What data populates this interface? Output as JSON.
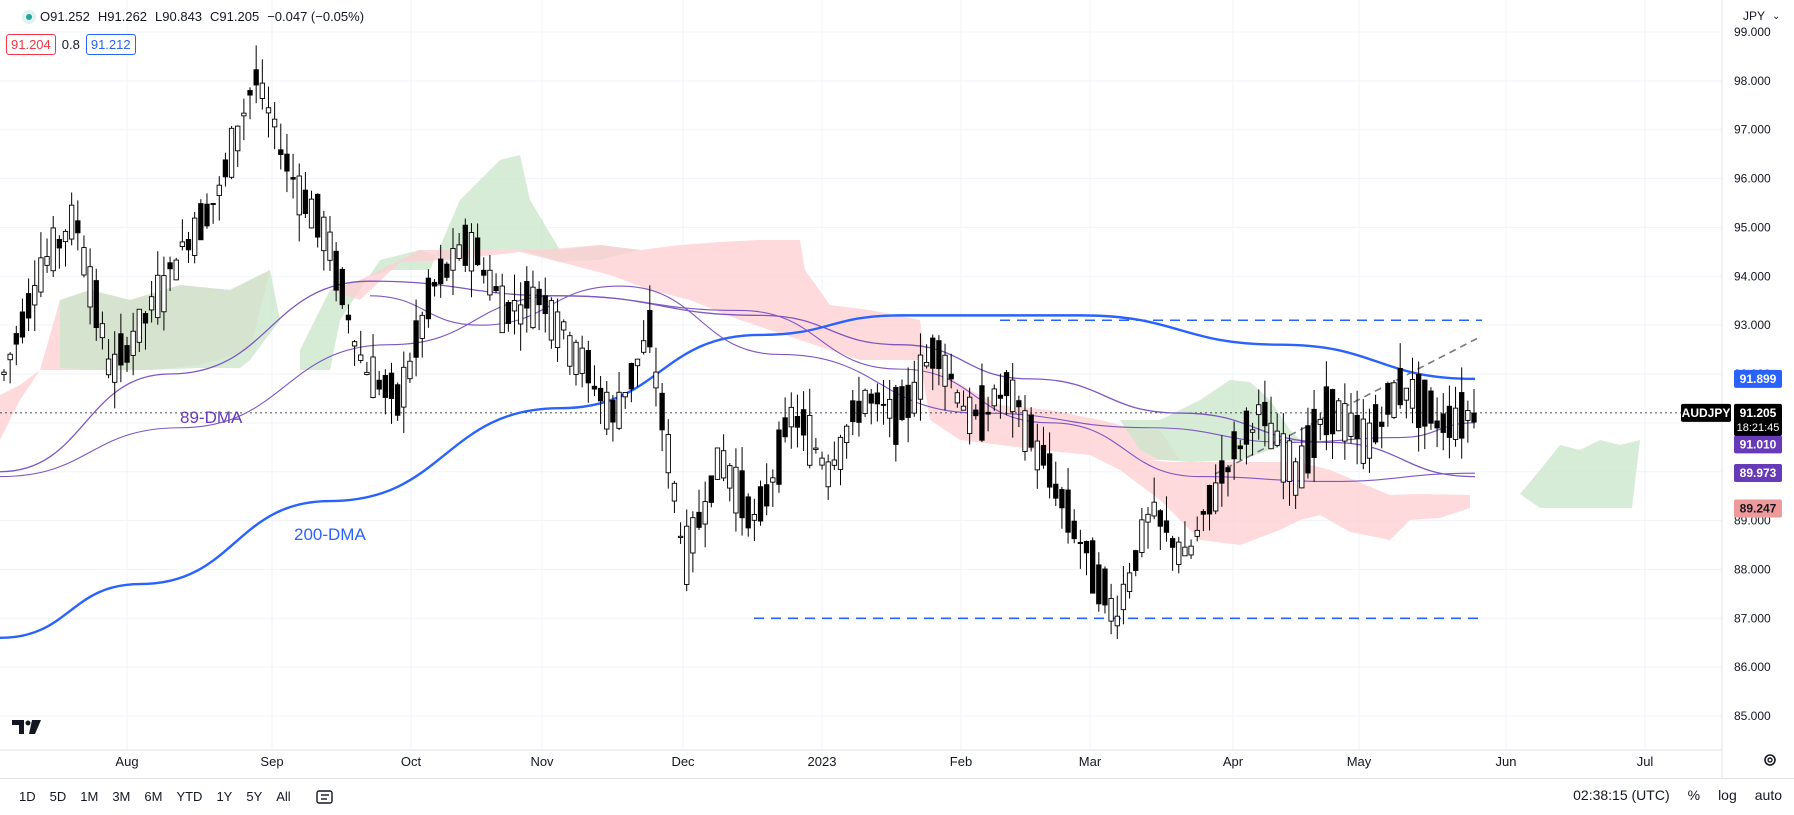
{
  "header": {
    "ohlc": [
      "O91.252",
      "H91.262",
      "L90.843",
      "C91.205",
      "−0.047 (−0.05%)"
    ],
    "bid": "91.204",
    "spread": "0.8",
    "ask": "91.212"
  },
  "annotations": {
    "dma89": "89-DMA",
    "dma200": "200-DMA"
  },
  "axis": {
    "currency": "JPY",
    "price_ticks": [
      "99.000",
      "98.000",
      "97.000",
      "96.000",
      "95.000",
      "94.000",
      "93.000",
      "92.000",
      "91.000",
      "90.000",
      "89.000",
      "88.000",
      "87.000",
      "86.000",
      "85.000"
    ],
    "time_ticks": [
      "Aug",
      "Sep",
      "Oct",
      "Nov",
      "Dec",
      "2023",
      "Feb",
      "Mar",
      "Apr",
      "May",
      "Jun",
      "Jul"
    ]
  },
  "price_labels": {
    "symbol": "AUDJPY",
    "last": "91.205",
    "countdown": "18:21:45",
    "blue": "91.899",
    "purple1": "91.010",
    "purple2": "89.973",
    "red": "89.247"
  },
  "colors": {
    "up": "#ffffff",
    "down": "#000000",
    "ma200": "#2962ff",
    "ma89": "#7e57c2",
    "cloud_green": "#c8e6c9",
    "cloud_red": "#ffcdd2",
    "purple_label": "#673ab7",
    "red_label": "#ef9a9a"
  },
  "bottom": {
    "ranges": [
      "1D",
      "5D",
      "1M",
      "3M",
      "6M",
      "YTD",
      "1Y",
      "5Y",
      "All"
    ],
    "clock": "02:38:15 (UTC)",
    "pct": "%",
    "log": "log",
    "auto": "auto"
  },
  "chart_data": {
    "type": "candlestick",
    "symbol": "AUDJPY",
    "ylim": [
      84.6,
      99.2
    ],
    "y_ticks": [
      99,
      98,
      97,
      96,
      95,
      94,
      93,
      92,
      91,
      90,
      89,
      88,
      87,
      86,
      85
    ],
    "x_ticks": [
      "Aug",
      "Sep",
      "Oct",
      "Nov",
      "Dec",
      "2023",
      "Feb",
      "Mar",
      "Apr",
      "May",
      "Jun",
      "Jul"
    ],
    "ohlc_keypoints": [
      [
        91.2,
        92.6,
        90.8,
        92.0
      ],
      [
        92.2,
        94.5,
        91.8,
        94.1
      ],
      [
        94.3,
        95.8,
        93.6,
        95.2
      ],
      [
        95.1,
        95.5,
        91.2,
        92.0
      ],
      [
        92.3,
        93.6,
        90.4,
        93.2
      ],
      [
        93.4,
        95.2,
        92.6,
        94.6
      ],
      [
        94.8,
        96.4,
        94.1,
        95.7
      ],
      [
        95.8,
        98.6,
        95.0,
        98.1
      ],
      [
        97.9,
        98.3,
        95.4,
        96.1
      ],
      [
        96.0,
        96.5,
        94.1,
        94.8
      ],
      [
        94.6,
        95.0,
        91.0,
        92.2
      ],
      [
        92.3,
        93.5,
        90.0,
        91.4
      ],
      [
        91.5,
        94.2,
        91.3,
        93.8
      ],
      [
        93.9,
        95.4,
        92.9,
        94.7
      ],
      [
        94.5,
        95.0,
        92.6,
        93.3
      ],
      [
        93.4,
        94.2,
        92.5,
        93.6
      ],
      [
        93.7,
        94.0,
        91.8,
        92.4
      ],
      [
        92.3,
        93.4,
        90.1,
        91.1
      ],
      [
        91.0,
        93.2,
        90.6,
        92.8
      ],
      [
        92.6,
        93.0,
        86.9,
        88.2
      ],
      [
        88.0,
        90.8,
        87.5,
        90.3
      ],
      [
        90.2,
        91.1,
        87.8,
        88.9
      ],
      [
        88.7,
        91.6,
        87.6,
        91.2
      ],
      [
        91.2,
        92.4,
        89.5,
        90.1
      ],
      [
        90.0,
        92.4,
        89.2,
        91.5
      ],
      [
        91.4,
        92.7,
        90.6,
        91.1
      ],
      [
        91.2,
        93.1,
        90.6,
        92.6
      ],
      [
        92.4,
        92.9,
        90.4,
        91.0
      ],
      [
        91.1,
        92.5,
        90.7,
        91.7
      ],
      [
        91.6,
        91.9,
        89.6,
        90.2
      ],
      [
        90.1,
        90.6,
        87.2,
        88.6
      ],
      [
        88.4,
        89.5,
        86.1,
        87.0
      ],
      [
        87.1,
        89.6,
        86.8,
        89.2
      ],
      [
        89.1,
        89.7,
        87.7,
        88.2
      ],
      [
        88.4,
        90.4,
        87.9,
        90.0
      ],
      [
        89.9,
        92.5,
        89.4,
        91.2
      ],
      [
        91.1,
        91.9,
        89.4,
        90.0
      ],
      [
        90.0,
        91.6,
        89.2,
        91.3
      ],
      [
        91.4,
        92.0,
        90.0,
        90.6
      ],
      [
        90.7,
        92.3,
        90.6,
        91.8
      ],
      [
        91.9,
        92.2,
        90.8,
        91.0
      ],
      [
        91.1,
        91.3,
        90.8,
        91.2
      ]
    ],
    "series": [
      {
        "name": "89-DMA",
        "type": "line",
        "values": [
          90.0,
          92.0,
          93.9,
          93.6,
          93.2,
          92.6,
          91.9,
          91.2,
          90.6,
          89.9
        ]
      },
      {
        "name": "200-DMA",
        "type": "line",
        "values": [
          86.6,
          87.7,
          89.4,
          91.3,
          92.8,
          93.2,
          93.2,
          92.6,
          91.9
        ]
      }
    ],
    "levels": [
      {
        "value": 93.1,
        "style": "dashed"
      },
      {
        "value": 87.0,
        "style": "dashed"
      }
    ],
    "last_price": 91.205
  }
}
